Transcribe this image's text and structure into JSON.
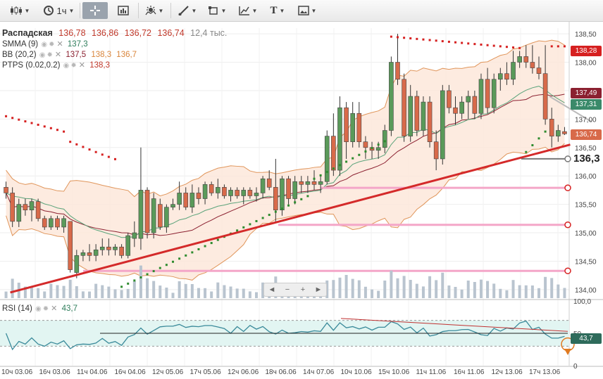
{
  "toolbar": {
    "candles_icon": "candles-icon",
    "interval_label": "1ч",
    "crosshair_icon": "crosshair-icon",
    "chart_type_icon": "chart-type-icon",
    "indicators_icon": "indicators-icon",
    "line_tool_icon": "line-tool-icon",
    "shape_tool_icon": "shape-tool-icon",
    "fib_tool_icon": "fib-tool-icon",
    "text_tool_label": "T",
    "image_tool_icon": "image-tool-icon"
  },
  "legend": {
    "symbol": "Распадская",
    "open": "136,78",
    "high": "136,86",
    "low": "136,72",
    "close": "136,74",
    "volume": "12,4 тыс.",
    "smma_label": "SMMA (9)",
    "smma_value": "137,3",
    "bb_label": "BB (20,2)",
    "bb_values": [
      "137,5",
      "138,3",
      "136,7"
    ],
    "ptps_label": "PTPS (0.02,0.2)",
    "ptps_value": "138,3",
    "rsi_label": "RSI (14)",
    "rsi_value": "43,7"
  },
  "price_labels": {
    "ptps": "138,28",
    "bb_mid": "137,49",
    "smma": "137,31",
    "close": "136,74",
    "level": "136,3",
    "rsi": "43,7"
  },
  "colors": {
    "up": "#5a9a5a",
    "down": "#d86a4a",
    "trendline": "#d42a2a",
    "level_line": "#f4a6c8",
    "bb_fill": "#fde6d8",
    "bb_band": "#e0955a",
    "smma": "#5aa37a",
    "bb_mid": "#8b2030",
    "ptps_up": "#2e8b2e",
    "ptps_down": "#d62020",
    "rsi_line": "#3a8a9a",
    "rsi_zone": "#e2f5f2"
  },
  "zoom": {
    "left": "◄",
    "minus": "−",
    "plus": "+",
    "right": "►"
  },
  "chart_data": {
    "type": "candlestick",
    "price_axis": {
      "ticks": [
        134.0,
        134.5,
        135.0,
        135.5,
        136.0,
        136.5,
        137.0,
        137.5,
        138.0,
        138.5
      ],
      "labels": [
        "134,00",
        "134,50",
        "135,00",
        "135,50",
        "136,00",
        "136,50",
        "137,00",
        "137,50",
        "138,00",
        "138,50"
      ],
      "range": [
        133.85,
        138.6
      ]
    },
    "rsi_axis": {
      "labels": [
        "100,0",
        "50",
        "0"
      ],
      "range": [
        0,
        100
      ]
    },
    "x_labels": [
      "10ч 03.06",
      "16ч 03.06",
      "11ч 04.06",
      "16ч 04.06",
      "12ч 05.06",
      "17ч 05.06",
      "12ч 06.06",
      "18ч 06.06",
      "14ч 07.06",
      "10ч 10.06",
      "15ч 10.06",
      "11ч 11.06",
      "16ч 11.06",
      "12ч 13.06",
      "17ч 13.06"
    ],
    "ohlc": [
      [
        135.8,
        135.9,
        135.6,
        135.7
      ],
      [
        135.7,
        135.8,
        135.1,
        135.2
      ],
      [
        135.2,
        135.6,
        135.1,
        135.5
      ],
      [
        135.5,
        135.6,
        135.3,
        135.4
      ],
      [
        135.4,
        135.6,
        135.2,
        135.55
      ],
      [
        135.55,
        135.6,
        135.2,
        135.25
      ],
      [
        135.25,
        135.3,
        135.05,
        135.1
      ],
      [
        135.1,
        135.3,
        135.05,
        135.25
      ],
      [
        135.25,
        135.3,
        135.05,
        135.1
      ],
      [
        135.1,
        135.3,
        135.0,
        135.25
      ],
      [
        135.2,
        135.2,
        134.3,
        134.35
      ],
      [
        134.3,
        134.7,
        134.2,
        134.6
      ],
      [
        134.6,
        134.7,
        134.5,
        134.65
      ],
      [
        134.65,
        134.8,
        134.5,
        134.6
      ],
      [
        134.6,
        134.8,
        134.5,
        134.7
      ],
      [
        134.7,
        134.9,
        134.6,
        134.75
      ],
      [
        134.75,
        134.9,
        134.6,
        134.7
      ],
      [
        134.7,
        134.8,
        134.6,
        134.75
      ],
      [
        134.75,
        134.8,
        134.55,
        134.6
      ],
      [
        134.6,
        135.0,
        134.55,
        134.95
      ],
      [
        134.9,
        135.2,
        134.75,
        135.0
      ],
      [
        134.9,
        136.5,
        134.7,
        135.75
      ],
      [
        135.75,
        135.8,
        134.9,
        135.0
      ],
      [
        135.0,
        135.7,
        134.9,
        135.6
      ],
      [
        135.5,
        135.6,
        135.05,
        135.1
      ],
      [
        135.1,
        135.5,
        135.0,
        135.45
      ],
      [
        135.45,
        135.6,
        135.4,
        135.5
      ],
      [
        135.5,
        135.9,
        135.4,
        135.7
      ],
      [
        135.7,
        135.8,
        135.4,
        135.45
      ],
      [
        135.45,
        135.85,
        135.35,
        135.7
      ],
      [
        135.7,
        135.8,
        135.5,
        135.6
      ],
      [
        135.6,
        135.9,
        135.5,
        135.85
      ],
      [
        135.85,
        135.9,
        135.65,
        135.7
      ],
      [
        135.7,
        135.95,
        135.6,
        135.8
      ],
      [
        135.8,
        135.85,
        135.6,
        135.65
      ],
      [
        135.65,
        135.8,
        135.55,
        135.75
      ],
      [
        135.75,
        135.8,
        135.6,
        135.65
      ],
      [
        135.65,
        135.8,
        135.5,
        135.75
      ],
      [
        135.75,
        135.8,
        135.6,
        135.65
      ],
      [
        135.65,
        135.8,
        135.55,
        135.7
      ],
      [
        135.7,
        136.0,
        135.6,
        135.95
      ],
      [
        135.95,
        136.1,
        135.75,
        135.8
      ],
      [
        135.8,
        136.3,
        135.2,
        135.4
      ],
      [
        135.4,
        136.0,
        135.3,
        135.95
      ],
      [
        135.95,
        136.0,
        135.5,
        135.6
      ],
      [
        135.6,
        136.0,
        135.5,
        135.9
      ],
      [
        135.9,
        136.0,
        135.7,
        135.85
      ],
      [
        135.85,
        136.0,
        135.7,
        135.9
      ],
      [
        135.9,
        136.1,
        135.75,
        135.85
      ],
      [
        135.85,
        136.0,
        135.7,
        135.9
      ],
      [
        135.9,
        136.8,
        135.85,
        136.7
      ],
      [
        136.7,
        137.1,
        136.0,
        136.1
      ],
      [
        136.1,
        137.4,
        136.0,
        137.2
      ],
      [
        137.2,
        137.3,
        136.3,
        136.6
      ],
      [
        136.6,
        137.3,
        136.5,
        137.1
      ],
      [
        137.1,
        137.3,
        136.5,
        136.6
      ],
      [
        136.6,
        136.7,
        136.3,
        136.5
      ],
      [
        136.5,
        136.6,
        136.3,
        136.45
      ],
      [
        136.45,
        136.6,
        136.3,
        136.5
      ],
      [
        136.5,
        136.9,
        136.4,
        136.8
      ],
      [
        136.8,
        138.1,
        136.7,
        138.0
      ],
      [
        138.0,
        138.5,
        137.6,
        137.7
      ],
      [
        137.7,
        137.8,
        136.6,
        136.7
      ],
      [
        136.7,
        137.6,
        136.6,
        137.4
      ],
      [
        137.4,
        137.5,
        136.7,
        136.8
      ],
      [
        136.8,
        137.4,
        136.7,
        137.3
      ],
      [
        137.3,
        137.4,
        136.5,
        136.6
      ],
      [
        136.6,
        136.8,
        136.1,
        136.3
      ],
      [
        136.3,
        137.6,
        136.2,
        137.5
      ],
      [
        137.5,
        137.6,
        137.1,
        137.2
      ],
      [
        137.2,
        137.4,
        136.9,
        137.1
      ],
      [
        137.1,
        137.4,
        137.0,
        137.3
      ],
      [
        137.3,
        137.5,
        137.0,
        137.4
      ],
      [
        137.4,
        137.5,
        137.0,
        137.1
      ],
      [
        137.1,
        137.8,
        137.0,
        137.7
      ],
      [
        137.7,
        137.9,
        137.1,
        137.2
      ],
      [
        137.2,
        137.8,
        137.1,
        137.7
      ],
      [
        137.7,
        137.9,
        137.5,
        137.8
      ],
      [
        137.8,
        138.0,
        137.6,
        137.7
      ],
      [
        137.7,
        138.2,
        137.6,
        138.0
      ],
      [
        138.0,
        138.2,
        137.9,
        138.1
      ],
      [
        138.1,
        138.3,
        137.9,
        138.0
      ],
      [
        138.0,
        138.3,
        137.8,
        137.9
      ],
      [
        137.9,
        138.1,
        137.7,
        137.8
      ],
      [
        137.8,
        138.3,
        136.9,
        137.0
      ],
      [
        137.0,
        137.2,
        136.5,
        136.7
      ],
      [
        136.7,
        136.9,
        136.6,
        136.8
      ],
      [
        136.78,
        136.86,
        136.72,
        136.74
      ]
    ],
    "indicators": [
      "SMMA (9)",
      "BB (20,2)",
      "PTPS (0.02,0.2)",
      "RSI (14)"
    ],
    "level_lines": [
      136.3,
      135.79,
      135.14,
      134.33
    ],
    "trendline": {
      "from": [
        0,
        133.95
      ],
      "to": [
        87,
        136.55
      ]
    }
  }
}
